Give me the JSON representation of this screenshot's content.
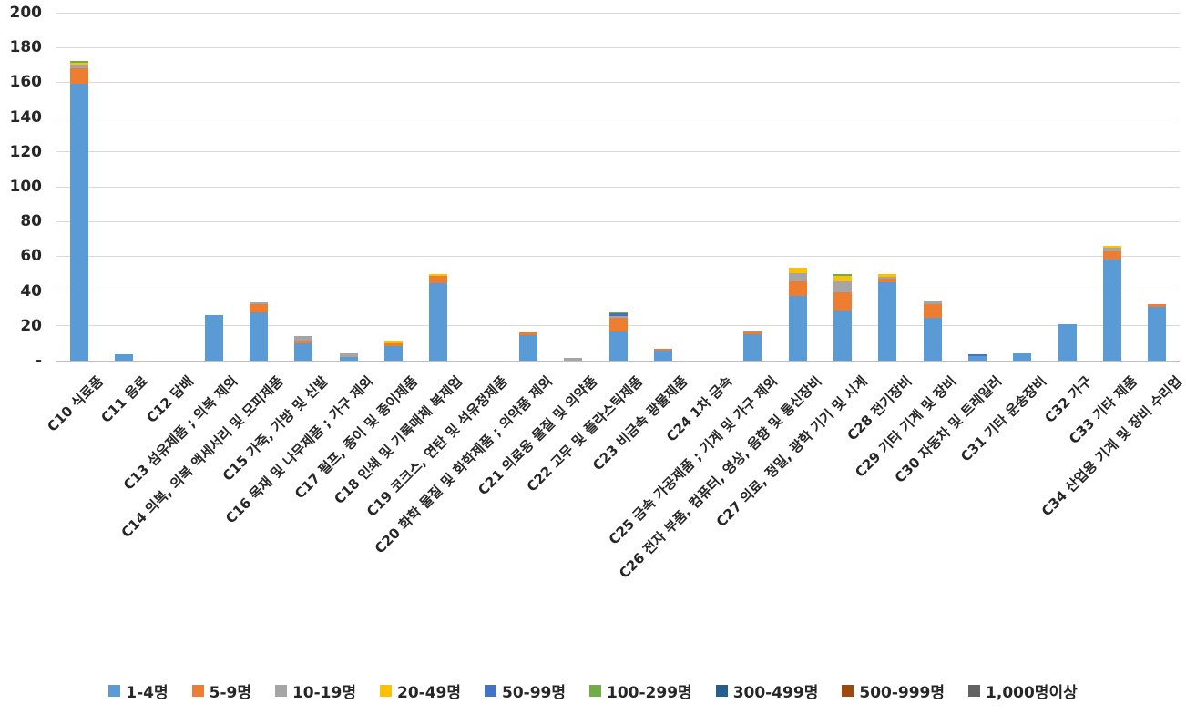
{
  "chart_data": {
    "type": "bar",
    "stacked": true,
    "grid": true,
    "legend_position": "bottom",
    "ylim": [
      0,
      200
    ],
    "ytick_step": 20,
    "ytick_labels": [
      "-",
      "20",
      "40",
      "60",
      "80",
      "100",
      "120",
      "140",
      "160",
      "180",
      "200"
    ],
    "categories": [
      "C10 식료품",
      "C11 음료",
      "C12 담배",
      "C13 섬유제품 ; 의복 제외",
      "C14 의복, 의복 액세서리 및 모피제품",
      "C15 가죽, 가방 및 신발",
      "C16 목재 및 나무제품 ; 가구 제외",
      "C17 펄프, 종이 및 종이제품",
      "C18 인쇄 및 기록매체 복제업",
      "C19 코크스, 연탄 및 석유정제품",
      "C20 화학 물질 및 화학제품 ; 의약품 제외",
      "C21 의료용 물질 및 의약품",
      "C22 고무 및 플라스틱제품",
      "C23 비금속 광물제품",
      "C24 1차 금속",
      "C25 금속 가공제품 ; 기계 및 가구 제외",
      "C26 전자 부품, 컴퓨터, 영상, 음향 및 통신장비",
      "C27 의료, 정밀, 광학 기기 및 시계",
      "C28 전기장비",
      "C29 기타 기계 및 장비",
      "C30 자동차 및 트레일러",
      "C31 기타 운송장비",
      "C32 가구",
      "C33 기타 제품",
      "C34 산업용 기계 및 장비 수리업"
    ],
    "series": [
      {
        "name": "1-4명",
        "color": "#5B9BD5",
        "values": [
          159,
          3.5,
          0,
          26,
          27.5,
          10,
          2.3,
          8.5,
          44.5,
          0,
          14.5,
          0,
          17,
          5.5,
          0,
          15,
          37,
          29,
          45,
          24.5,
          2.5,
          4,
          21,
          58,
          31
        ]
      },
      {
        "name": "5-9명",
        "color": "#ED7D31",
        "values": [
          9,
          0,
          0,
          0,
          5,
          1.6,
          0,
          1.5,
          4,
          0,
          1.5,
          0,
          7.5,
          1.5,
          0,
          1.5,
          8.5,
          10.5,
          2,
          8,
          0,
          0,
          0,
          5,
          1.5
        ]
      },
      {
        "name": "10-19명",
        "color": "#A5A5A5",
        "values": [
          2,
          0,
          0,
          0,
          1,
          2.4,
          1.7,
          0,
          0,
          0,
          0,
          1.5,
          1,
          0,
          0,
          0,
          5,
          6,
          1,
          1.5,
          0,
          0,
          0,
          2,
          0
        ]
      },
      {
        "name": "20-49명",
        "color": "#FFC000",
        "values": [
          1,
          0,
          0,
          0,
          0,
          0,
          0,
          1.5,
          1.5,
          0,
          0,
          0,
          0,
          0,
          0,
          0,
          3,
          3,
          2,
          0,
          0,
          0,
          0,
          1,
          0
        ]
      },
      {
        "name": "50-99명",
        "color": "#4472C4",
        "values": [
          0,
          0,
          0,
          0,
          0,
          0,
          0,
          0,
          0,
          0,
          0,
          0,
          1.5,
          0,
          0,
          0,
          0,
          0,
          0,
          0,
          1,
          0,
          0,
          0,
          0
        ]
      },
      {
        "name": "100-299명",
        "color": "#70AD47",
        "values": [
          1.5,
          0,
          0,
          0,
          0,
          0,
          0,
          0,
          0,
          0,
          0,
          0,
          1,
          0,
          0,
          0,
          0,
          1.5,
          0,
          0,
          0,
          0,
          0,
          0,
          0
        ]
      },
      {
        "name": "300-499명",
        "color": "#255E91",
        "values": [
          0,
          0,
          0,
          0,
          0,
          0,
          0,
          0,
          0,
          0,
          0,
          0,
          0,
          0,
          0,
          0,
          0,
          0,
          0,
          0,
          0,
          0,
          0,
          0,
          0
        ]
      },
      {
        "name": "500-999명",
        "color": "#9E480E",
        "values": [
          0,
          0,
          0,
          0,
          0,
          0,
          0,
          0,
          0,
          0,
          0,
          0,
          0,
          0,
          0,
          0,
          0,
          0,
          0,
          0,
          0,
          0,
          0,
          0,
          0
        ]
      },
      {
        "name": "1,000명이상",
        "color": "#636363",
        "values": [
          0,
          0,
          0,
          0,
          0,
          0,
          0,
          0,
          0,
          0,
          0,
          0,
          0,
          0,
          0,
          0,
          0,
          0,
          0,
          0,
          0,
          0,
          0,
          0,
          0
        ]
      }
    ]
  },
  "layout_colors": {
    "gridline": "#d9d9d9",
    "axis_line": "#bfbfbf",
    "text": "#262626"
  }
}
